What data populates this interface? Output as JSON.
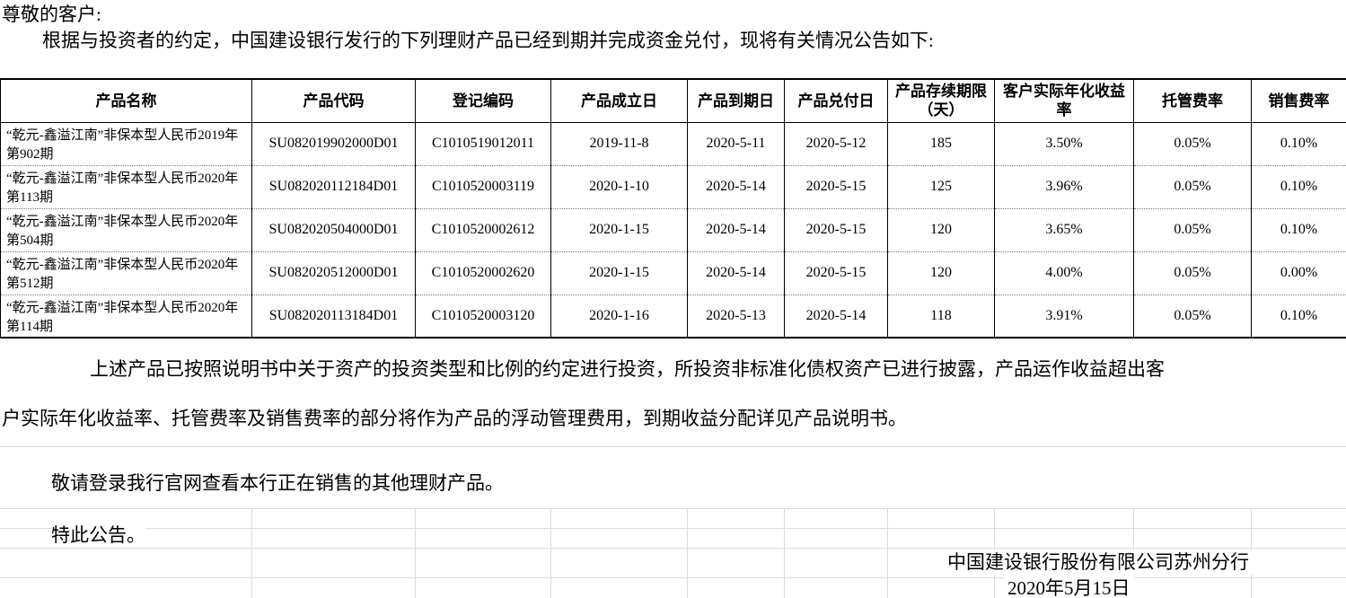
{
  "page": {
    "greeting": "尊敬的客户:",
    "intro": "根据与投资者的约定，中国建设银行发行的下列理财产品已经到期并完成资金兑付，现将有关情况公告如下:"
  },
  "table": {
    "column_keys": [
      "product-name",
      "product-code",
      "registration-code",
      "established-date",
      "maturity-date",
      "payment-date",
      "duration-days",
      "annualized-yield",
      "custody-fee",
      "sales-fee"
    ],
    "headers": [
      "产品名称",
      "产品代码",
      "登记编码",
      "产品成立日",
      "产品到期日",
      "产品兑付日",
      "产品存续期限（天）",
      "客户实际年化收益率",
      "托管费率",
      "销售费率"
    ],
    "rows": [
      [
        "“乾元-鑫溢江南”非保本型人民币2019年第902期",
        "SU082019902000D01",
        "C1010519012011",
        "2019-11-8",
        "2020-5-11",
        "2020-5-12",
        "185",
        "3.50%",
        "0.05%",
        "0.10%"
      ],
      [
        "“乾元-鑫溢江南”非保本型人民币2020年第113期",
        "SU082020112184D01",
        "C1010520003119",
        "2020-1-10",
        "2020-5-14",
        "2020-5-15",
        "125",
        "3.96%",
        "0.05%",
        "0.10%"
      ],
      [
        "“乾元-鑫溢江南”非保本型人民币2020年第504期",
        "SU082020504000D01",
        "C1010520002612",
        "2020-1-15",
        "2020-5-14",
        "2020-5-15",
        "120",
        "3.65%",
        "0.05%",
        "0.10%"
      ],
      [
        "“乾元-鑫溢江南”非保本型人民币2020年第512期",
        "SU082020512000D01",
        "C1010520002620",
        "2020-1-15",
        "2020-5-14",
        "2020-5-15",
        "120",
        "4.00%",
        "0.05%",
        "0.00%"
      ],
      [
        "“乾元-鑫溢江南”非保本型人民币2020年第114期",
        "SU082020113184D01",
        "C1010520003120",
        "2020-1-16",
        "2020-5-13",
        "2020-5-14",
        "118",
        "3.91%",
        "0.05%",
        "0.10%"
      ]
    ]
  },
  "body": {
    "para1_line1": "上述产品已按照说明书中关于资产的投资类型和比例的约定进行投资，所投资非标准化债权资产已进行披露，产品运作收益超出客",
    "para1_line2": "户实际年化收益率、托管费率及销售费率的部分将作为产品的浮动管理费用，到期收益分配详见产品说明书。",
    "para2": "敬请登录我行官网查看本行正在销售的其他理财产品。",
    "para3": "特此公告。"
  },
  "footer": {
    "signature": "中国建设银行股份有限公司苏州分行",
    "date": "2020年5月15日"
  }
}
